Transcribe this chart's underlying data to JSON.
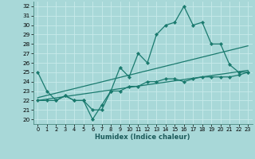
{
  "xlabel": "Humidex (Indice chaleur)",
  "xlim": [
    -0.5,
    23.5
  ],
  "ylim": [
    19.5,
    32.5
  ],
  "xticks": [
    0,
    1,
    2,
    3,
    4,
    5,
    6,
    7,
    8,
    9,
    10,
    11,
    12,
    13,
    14,
    15,
    16,
    17,
    18,
    19,
    20,
    21,
    22,
    23
  ],
  "yticks": [
    20,
    21,
    22,
    23,
    24,
    25,
    26,
    27,
    28,
    29,
    30,
    31,
    32
  ],
  "bg_color": "#a8d8d8",
  "grid_color": "#c8eaea",
  "line_color": "#1a7a6e",
  "line1_x": [
    0,
    1,
    2,
    3,
    4,
    5,
    6,
    7,
    8,
    9,
    10,
    11,
    12,
    13,
    14,
    15,
    16,
    17,
    18,
    19,
    20,
    21,
    22,
    23
  ],
  "line1_y": [
    25,
    23,
    22,
    22.5,
    22,
    22,
    20,
    21.5,
    23,
    25.5,
    24.5,
    27,
    26,
    29,
    30,
    30.3,
    32,
    30,
    30.3,
    28,
    28,
    25.8,
    25,
    25
  ],
  "line2_x": [
    0,
    1,
    2,
    3,
    4,
    5,
    6,
    7,
    8,
    9,
    10,
    11,
    12,
    13,
    14,
    15,
    16,
    17,
    18,
    19,
    20,
    21,
    22,
    23
  ],
  "line2_y": [
    22,
    22,
    22,
    22.5,
    22,
    22,
    21,
    21,
    23,
    23,
    23.5,
    23.5,
    24,
    24,
    24.3,
    24.3,
    24,
    24.3,
    24.5,
    24.5,
    24.5,
    24.5,
    24.7,
    25
  ],
  "line3_x": [
    0,
    23
  ],
  "line3_y": [
    22.3,
    27.8
  ],
  "line4_x": [
    0,
    23
  ],
  "line4_y": [
    22.0,
    25.2
  ]
}
